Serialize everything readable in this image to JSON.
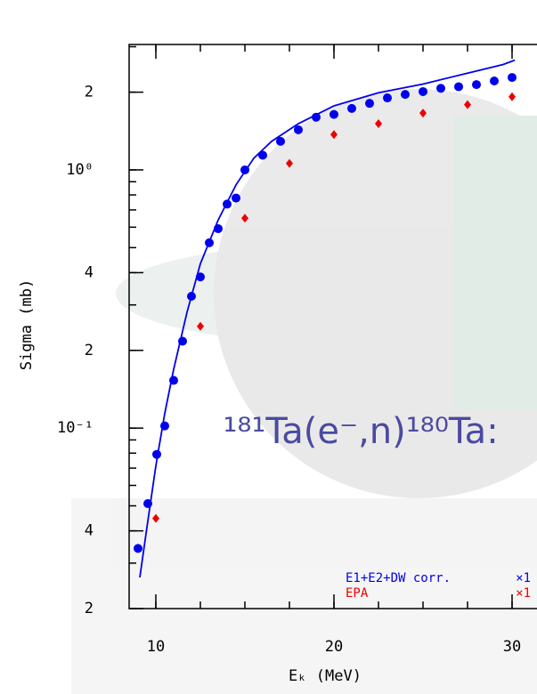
{
  "chart_data": {
    "type": "scatter",
    "annotation": "¹⁸¹Ta(e⁻,n)¹⁸⁰Ta:",
    "x_label": "Eₖ (MeV)",
    "y_label": "Sigma (mb)",
    "xlim": [
      8.5,
      31.4
    ],
    "xticks": [
      10,
      20,
      30
    ],
    "ylim": [
      0.02,
      3.06
    ],
    "log_y": true,
    "yticks": [
      {
        "value": 0.02,
        "label": "2"
      },
      {
        "value": 0.04,
        "label": "4"
      },
      {
        "value": 0.1,
        "label": "10⁻¹"
      },
      {
        "value": 0.2,
        "label": "2"
      },
      {
        "value": 0.4,
        "label": "4"
      },
      {
        "value": 1,
        "label": "10⁰"
      },
      2
    ],
    "series": [
      {
        "name": "E1+E2+DW corr.",
        "factor": "×1",
        "color": "#0000ee",
        "marker": "circle",
        "x": [
          9.0,
          9.55,
          10.05,
          10.5,
          11,
          11.5,
          12,
          12.5,
          13,
          13.5,
          14,
          14.5,
          15,
          16,
          17,
          18,
          19,
          20,
          21,
          22,
          23,
          24,
          25,
          26,
          27,
          28,
          29,
          30
        ],
        "values": [
          0.0342,
          0.051,
          0.0791,
          0.102,
          0.153,
          0.217,
          0.324,
          0.385,
          0.522,
          0.592,
          0.737,
          0.778,
          1.0,
          1.14,
          1.29,
          1.43,
          1.6,
          1.64,
          1.73,
          1.81,
          1.9,
          1.96,
          2.01,
          2.07,
          2.1,
          2.14,
          2.21,
          2.28
        ]
      },
      {
        "name": "EPA",
        "factor": "×1",
        "color": "#ee0000",
        "marker": "diamond",
        "x": [
          10,
          12.5,
          15,
          17.5,
          20,
          22.5,
          25,
          27.5,
          30
        ],
        "values": [
          0.0447,
          0.248,
          0.65,
          1.06,
          1.37,
          1.51,
          1.66,
          1.79,
          1.92
        ]
      },
      {
        "color": "#0000ee",
        "marker": "line",
        "x": [
          9.1,
          9.5,
          10,
          10.5,
          11,
          11.75,
          12.5,
          13.5,
          14.5,
          15.5,
          16.5,
          18,
          20,
          22.5,
          25,
          27.5,
          29.5,
          30.15
        ],
        "values": [
          0.0264,
          0.0413,
          0.0714,
          0.114,
          0.169,
          0.281,
          0.433,
          0.64,
          0.875,
          1.11,
          1.29,
          1.51,
          1.77,
          1.99,
          2.15,
          2.37,
          2.56,
          2.66
        ]
      }
    ]
  }
}
